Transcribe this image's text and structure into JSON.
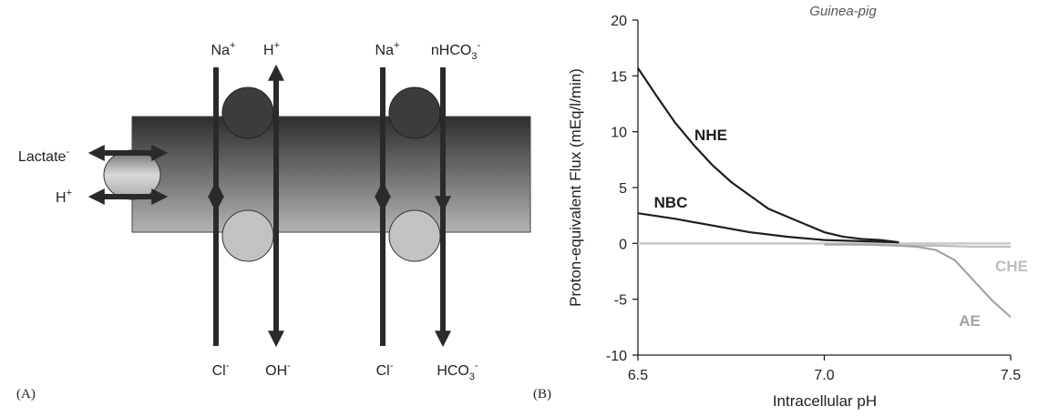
{
  "diagram": {
    "labels": {
      "top_na_1": {
        "text": "Na",
        "sup": "+"
      },
      "top_h": {
        "text": "H",
        "sup": "+"
      },
      "top_na_2": {
        "text": "Na",
        "sup": "+"
      },
      "top_nhco3": {
        "text": "nHCO",
        "sub": "3",
        "sup": "-"
      },
      "bottom_cl_1": {
        "text": "Cl",
        "sup": "-"
      },
      "bottom_oh": {
        "text": "OH",
        "sup": "-"
      },
      "bottom_cl_2": {
        "text": "Cl",
        "sup": "-"
      },
      "bottom_hco3": {
        "text": "HCO",
        "sub": "3",
        "sup": "-"
      },
      "lactate": {
        "text": "Lactate",
        "sup": "-"
      },
      "left_h": {
        "text": "H",
        "sup": "+"
      }
    },
    "panel_a": "(A)",
    "panel_b": "(B)"
  },
  "chart_data": {
    "type": "line",
    "title": "Guinea-pig",
    "x_label": "Intracellular pH",
    "y_label": "Proton-equivalent Flux (mEq/l/min)",
    "xlim": [
      6.5,
      7.5
    ],
    "xticks": [
      {
        "value": 6.5,
        "label": "6.5"
      },
      {
        "value": 7,
        "label": "7.0"
      },
      {
        "value": 7.5,
        "label": "7.5"
      }
    ],
    "ylim": [
      -10,
      20
    ],
    "yticks": [
      -10,
      -5,
      0,
      5,
      10,
      15,
      20
    ],
    "zero_line": true,
    "series": [
      {
        "name": "NHE",
        "color": "#1e1e1e",
        "x": [
          6.5,
          6.55,
          6.6,
          6.65,
          6.7,
          6.75,
          6.8,
          6.85,
          6.9,
          6.95,
          7.0,
          7.05,
          7.1,
          7.15,
          7.2
        ],
        "values": [
          15.7,
          13.2,
          10.8,
          8.8,
          7.0,
          5.5,
          4.3,
          3.1,
          2.4,
          1.7,
          1.0,
          0.6,
          0.4,
          0.3,
          0.1
        ]
      },
      {
        "name": "NBC",
        "color": "#1e1e1e",
        "x": [
          6.5,
          6.6,
          6.7,
          6.8,
          6.9,
          7.0,
          7.1,
          7.2
        ],
        "values": [
          2.7,
          2.2,
          1.6,
          1.0,
          0.6,
          0.3,
          0.2,
          0.1
        ]
      },
      {
        "name": "CHE",
        "color": "#bdbdbd",
        "x": [
          7.0,
          7.1,
          7.2,
          7.3,
          7.4,
          7.5
        ],
        "values": [
          -0.1,
          -0.1,
          -0.2,
          -0.2,
          -0.3,
          -0.3
        ]
      },
      {
        "name": "AE",
        "color": "#a3a3a3",
        "x": [
          7.0,
          7.1,
          7.2,
          7.25,
          7.3,
          7.35,
          7.4,
          7.45,
          7.5
        ],
        "values": [
          -0.1,
          -0.1,
          -0.2,
          -0.3,
          -0.6,
          -1.5,
          -3.3,
          -5.1,
          -6.6
        ]
      }
    ]
  }
}
